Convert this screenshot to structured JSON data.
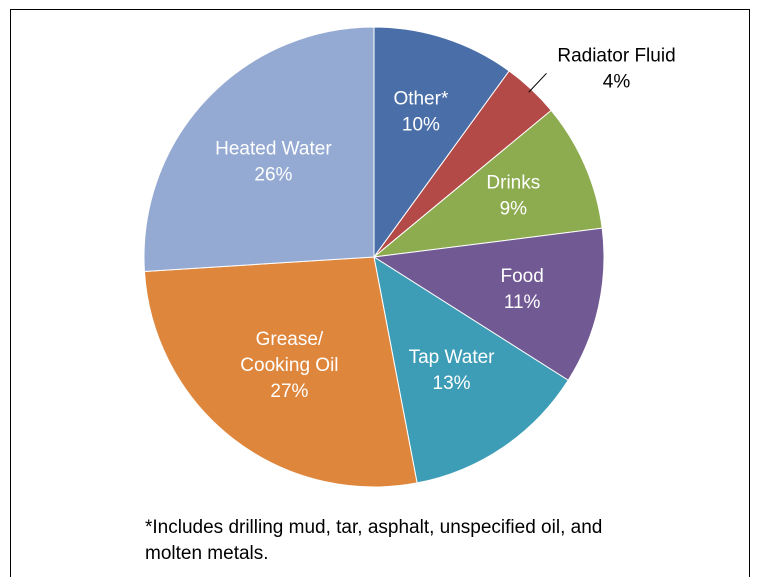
{
  "chart_data": {
    "type": "pie",
    "categories": [
      "Other*",
      "Radiator Fluid",
      "Drinks",
      "Food",
      "Tap Water",
      "Grease/\nCooking Oil",
      "Heated Water"
    ],
    "values": [
      10,
      4,
      9,
      11,
      13,
      27,
      26
    ],
    "value_labels": [
      "10%",
      "4%",
      "9%",
      "11%",
      "13%",
      "27%",
      "26%"
    ],
    "colors": [
      "#4a6fa8",
      "#b44a47",
      "#8dab4f",
      "#715994",
      "#3e9db6",
      "#df863d",
      "#95aad3"
    ],
    "footnote": [
      "*Includes drilling mud, tar, asphalt, unspecified oil, and",
      "molten metals."
    ]
  }
}
